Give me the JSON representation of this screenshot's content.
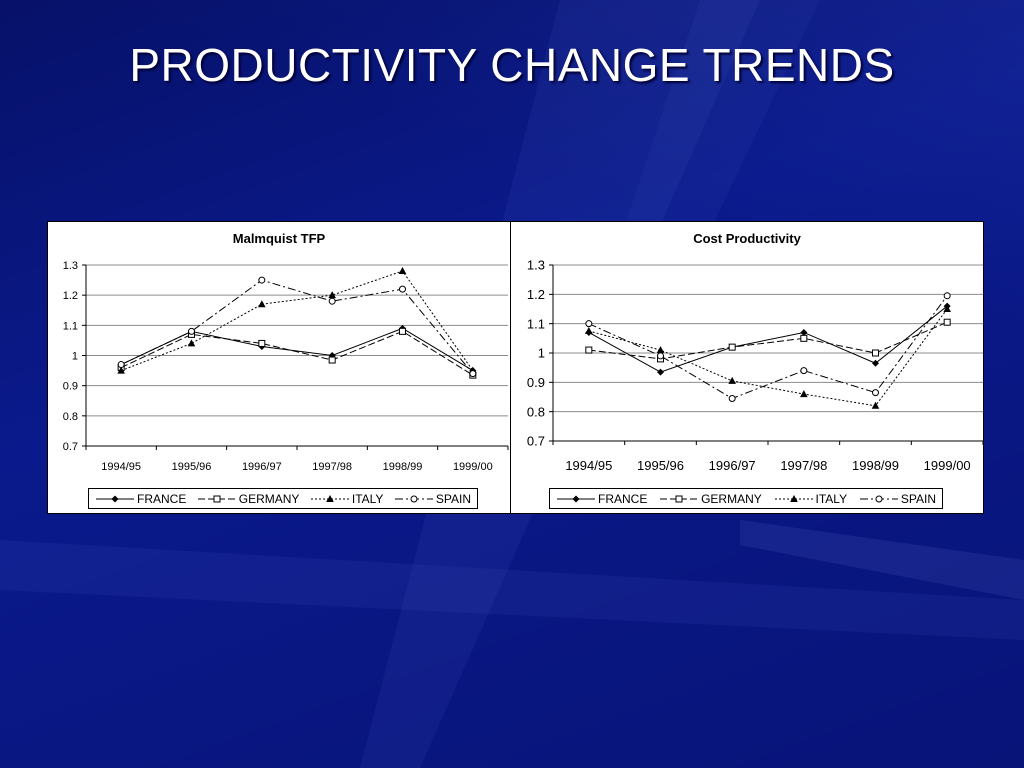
{
  "slide": {
    "title": "PRODUCTIVITY CHANGE TRENDS",
    "background_color": "#0a1a8c"
  },
  "series_styles": [
    {
      "name": "FRANCE",
      "marker": "diamond-filled",
      "dash": "solid"
    },
    {
      "name": "GERMANY",
      "marker": "square-open",
      "dash": "dashed"
    },
    {
      "name": "ITALY",
      "marker": "triangle-filled",
      "dash": "dotted"
    },
    {
      "name": "SPAIN",
      "marker": "circle-open",
      "dash": "dash-dot"
    }
  ],
  "chart_data": [
    {
      "type": "line",
      "title": "Malmquist TFP",
      "categories": [
        "1994/95",
        "1995/96",
        "1996/97",
        "1997/98",
        "1998/99",
        "1999/00"
      ],
      "yticks": [
        "0.7",
        "0.8",
        "0.9",
        "1",
        "1.1",
        "1.2",
        "1.3"
      ],
      "ylim": [
        0.7,
        1.3
      ],
      "grid": true,
      "legend": "bottom",
      "series": [
        {
          "name": "FRANCE",
          "values": [
            0.97,
            1.08,
            1.03,
            1.0,
            1.09,
            0.95
          ]
        },
        {
          "name": "GERMANY",
          "values": [
            0.96,
            1.07,
            1.04,
            0.985,
            1.08,
            0.935
          ]
        },
        {
          "name": "ITALY",
          "values": [
            0.95,
            1.04,
            1.17,
            1.2,
            1.28,
            0.95
          ]
        },
        {
          "name": "SPAIN",
          "values": [
            0.97,
            1.08,
            1.25,
            1.18,
            1.22,
            0.94
          ]
        }
      ]
    },
    {
      "type": "line",
      "title": "Cost Productivity",
      "categories": [
        "1994/95",
        "1995/96",
        "1996/97",
        "1997/98",
        "1998/99",
        "1999/00"
      ],
      "yticks": [
        "0.7",
        "0.8",
        "0.9",
        "1",
        "1.1",
        "1.2",
        "1.3"
      ],
      "ylim": [
        0.7,
        1.3
      ],
      "grid": true,
      "legend": "bottom",
      "series": [
        {
          "name": "FRANCE",
          "values": [
            1.07,
            0.935,
            1.02,
            1.07,
            0.965,
            1.16
          ]
        },
        {
          "name": "GERMANY",
          "values": [
            1.01,
            0.98,
            1.02,
            1.05,
            1.0,
            1.105
          ]
        },
        {
          "name": "ITALY",
          "values": [
            1.075,
            1.01,
            0.905,
            0.86,
            0.82,
            1.15
          ]
        },
        {
          "name": "SPAIN",
          "values": [
            1.1,
            0.99,
            0.845,
            0.94,
            0.865,
            1.195
          ]
        }
      ]
    }
  ]
}
